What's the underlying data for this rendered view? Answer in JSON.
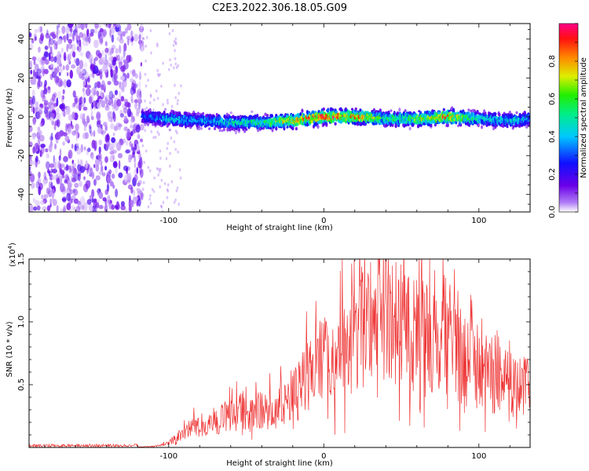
{
  "figure_title": "C2E3.2022.306.18.05.G09",
  "colors": {
    "snr_line": "#ee3333",
    "axis": "#000000",
    "background": "#ffffff"
  },
  "chart_data": [
    {
      "type": "heatmap",
      "xlabel": "Height of straight line (km)",
      "ylabel": "Frequency (Hz)",
      "xlim": [
        -190,
        133
      ],
      "ylim": [
        -49,
        48
      ],
      "x_ticks": [
        -100,
        0,
        100
      ],
      "y_ticks": [
        -40,
        -20,
        0,
        20,
        40
      ],
      "grid": false,
      "colorbar": {
        "label": "Normalized spectral amplitude",
        "range": [
          0.0,
          1.0
        ],
        "ticks": [
          "0.0",
          "0.2",
          "0.4",
          "0.6",
          "0.8"
        ],
        "colormap": "rainbow (violet-blue-cyan-green-yellow-red-magenta)"
      },
      "noise_region_x": [
        -190,
        -117
      ],
      "ridge": {
        "x": [
          -117,
          -100,
          -80,
          -60,
          -40,
          -20,
          0,
          20,
          40,
          60,
          80,
          100,
          120,
          133
        ],
        "center_freq": [
          0,
          -1,
          -2,
          -3,
          -3,
          -2,
          0,
          0,
          -1,
          -1,
          0,
          -1,
          -2,
          -1
        ],
        "peak_amplitude": [
          0.3,
          0.45,
          0.4,
          0.5,
          0.55,
          0.8,
          0.95,
          0.9,
          0.55,
          0.7,
          0.85,
          0.5,
          0.45,
          0.4
        ]
      }
    },
    {
      "type": "line",
      "series": [
        {
          "x": [
            -190,
            -150,
            -120,
            -110,
            -100,
            -90,
            -80,
            -70,
            -60,
            -50,
            -40,
            -30,
            -20,
            -10,
            0,
            10,
            20,
            30,
            35,
            40,
            50,
            60,
            70,
            80,
            90,
            100,
            110,
            120,
            133
          ],
          "values": [
            20,
            20,
            30,
            80,
            300,
            1200,
            1700,
            2000,
            2400,
            2700,
            2800,
            2900,
            3800,
            5500,
            6800,
            7200,
            8000,
            9200,
            10500,
            9800,
            9300,
            8500,
            8000,
            7200,
            6500,
            6000,
            5200,
            4700,
            4400
          ]
        }
      ],
      "xlabel": "Height of straight line (km)",
      "ylabel": "SNR (10 * v/v)",
      "y_multiplier": "(x10",
      "y_multiplier_exp": "4",
      "y_multiplier_close": ")",
      "xlim": [
        -190,
        133
      ],
      "ylim": [
        0,
        15000
      ],
      "x_ticks": [
        -100,
        0,
        100
      ],
      "y_ticks": [
        "0.5",
        "1.0",
        "1.5"
      ],
      "grid": false
    }
  ]
}
